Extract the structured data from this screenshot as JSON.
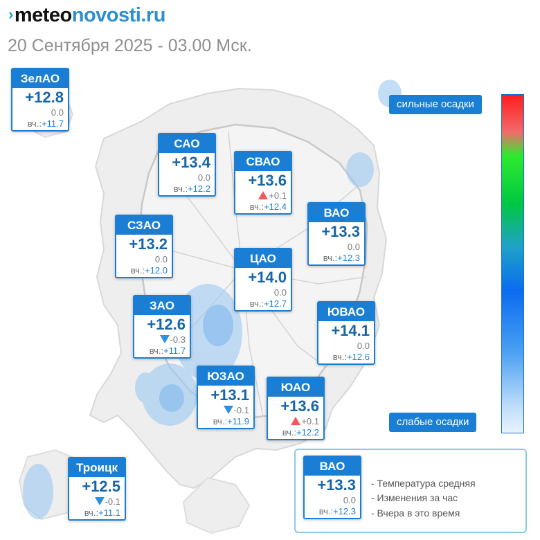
{
  "header": {
    "logo_meteo": "meteo",
    "logo_novosti": "novosti",
    "logo_ru": ".ru",
    "subtitle": "20 Сентября 2025 - 03.00 Мск."
  },
  "districts": [
    {
      "name": "ЗелАО",
      "temp": "+12.8",
      "change": "0.0",
      "change_dir": "none",
      "yest_label": "вч.:",
      "yest": "+11.7"
    },
    {
      "name": "САО",
      "temp": "+13.4",
      "change": "0.0",
      "change_dir": "none",
      "yest_label": "вч.:",
      "yest": "+12.2"
    },
    {
      "name": "СВАО",
      "temp": "+13.6",
      "change": "+0.1",
      "change_dir": "up",
      "yest_label": "вч.:",
      "yest": "+12.4"
    },
    {
      "name": "ВАО",
      "temp": "+13.3",
      "change": "0.0",
      "change_dir": "none",
      "yest_label": "вч.:",
      "yest": "+12.3"
    },
    {
      "name": "СЗАО",
      "temp": "+13.2",
      "change": "0.0",
      "change_dir": "none",
      "yest_label": "вч.:",
      "yest": "+12.0"
    },
    {
      "name": "ЦАО",
      "temp": "+14.0",
      "change": "0.0",
      "change_dir": "none",
      "yest_label": "вч.:",
      "yest": "+12.7"
    },
    {
      "name": "ЗАО",
      "temp": "+12.6",
      "change": "-0.3",
      "change_dir": "down",
      "yest_label": "вч.:",
      "yest": "+11.7"
    },
    {
      "name": "ЮВАО",
      "temp": "+14.1",
      "change": "0.0",
      "change_dir": "none",
      "yest_label": "вч.:",
      "yest": "+12.6"
    },
    {
      "name": "ЮЗАО",
      "temp": "+13.1",
      "change": "-0.1",
      "change_dir": "down",
      "yest_label": "вч.:",
      "yest": "+11.9"
    },
    {
      "name": "ЮАО",
      "temp": "+13.6",
      "change": "+0.1",
      "change_dir": "up",
      "yest_label": "вч.:",
      "yest": "+12.2"
    },
    {
      "name": "Троицк",
      "temp": "+12.5",
      "change": "-0.1",
      "change_dir": "down",
      "yest_label": "вч.:",
      "yest": "+11.1"
    }
  ],
  "scale": {
    "top_label": "сильные осадки",
    "bottom_label": "слабые осадки"
  },
  "legend": {
    "sample": {
      "name": "ВАО",
      "temp": "+13.3",
      "change": "0.0",
      "yest_label": "вч.:",
      "yest": "+12.3"
    },
    "items": [
      "- Температура средняя",
      "- Изменения за час",
      "- Вчера в это время"
    ]
  },
  "colors": {
    "card_blue": "#1a7fd4",
    "temp_blue": "#1565a8",
    "up_red": "#ef5b5b",
    "down_blue": "#2f8fe0"
  }
}
